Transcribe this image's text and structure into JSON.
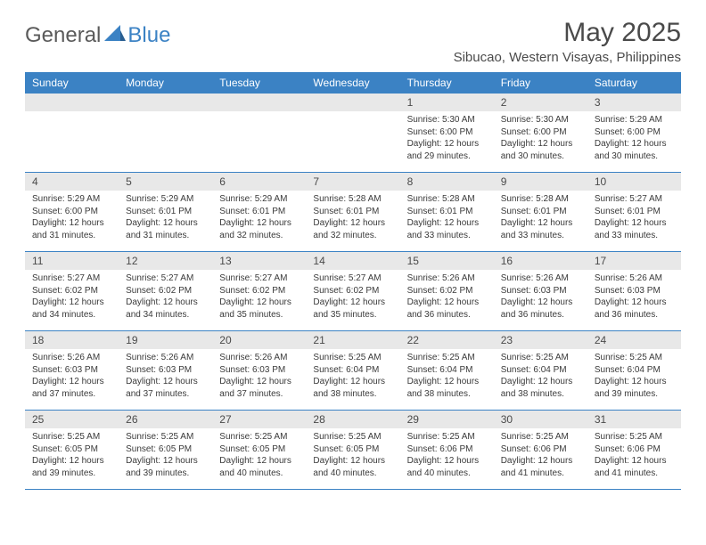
{
  "logo": {
    "general": "General",
    "blue": "Blue"
  },
  "title": "May 2025",
  "location": "Sibucao, Western Visayas, Philippines",
  "colors": {
    "header_bg": "#3b82c4",
    "daynum_bg": "#e8e8e8",
    "text": "#4a4a4a",
    "body_text": "#3a3a3a",
    "border": "#3b82c4",
    "logo_gray": "#5a5a5a",
    "logo_blue": "#3b82c4"
  },
  "weekdays": [
    "Sunday",
    "Monday",
    "Tuesday",
    "Wednesday",
    "Thursday",
    "Friday",
    "Saturday"
  ],
  "weeks": [
    [
      {
        "n": "",
        "sr": "",
        "ss": "",
        "dl": ""
      },
      {
        "n": "",
        "sr": "",
        "ss": "",
        "dl": ""
      },
      {
        "n": "",
        "sr": "",
        "ss": "",
        "dl": ""
      },
      {
        "n": "",
        "sr": "",
        "ss": "",
        "dl": ""
      },
      {
        "n": "1",
        "sr": "Sunrise: 5:30 AM",
        "ss": "Sunset: 6:00 PM",
        "dl": "Daylight: 12 hours and 29 minutes."
      },
      {
        "n": "2",
        "sr": "Sunrise: 5:30 AM",
        "ss": "Sunset: 6:00 PM",
        "dl": "Daylight: 12 hours and 30 minutes."
      },
      {
        "n": "3",
        "sr": "Sunrise: 5:29 AM",
        "ss": "Sunset: 6:00 PM",
        "dl": "Daylight: 12 hours and 30 minutes."
      }
    ],
    [
      {
        "n": "4",
        "sr": "Sunrise: 5:29 AM",
        "ss": "Sunset: 6:00 PM",
        "dl": "Daylight: 12 hours and 31 minutes."
      },
      {
        "n": "5",
        "sr": "Sunrise: 5:29 AM",
        "ss": "Sunset: 6:01 PM",
        "dl": "Daylight: 12 hours and 31 minutes."
      },
      {
        "n": "6",
        "sr": "Sunrise: 5:29 AM",
        "ss": "Sunset: 6:01 PM",
        "dl": "Daylight: 12 hours and 32 minutes."
      },
      {
        "n": "7",
        "sr": "Sunrise: 5:28 AM",
        "ss": "Sunset: 6:01 PM",
        "dl": "Daylight: 12 hours and 32 minutes."
      },
      {
        "n": "8",
        "sr": "Sunrise: 5:28 AM",
        "ss": "Sunset: 6:01 PM",
        "dl": "Daylight: 12 hours and 33 minutes."
      },
      {
        "n": "9",
        "sr": "Sunrise: 5:28 AM",
        "ss": "Sunset: 6:01 PM",
        "dl": "Daylight: 12 hours and 33 minutes."
      },
      {
        "n": "10",
        "sr": "Sunrise: 5:27 AM",
        "ss": "Sunset: 6:01 PM",
        "dl": "Daylight: 12 hours and 33 minutes."
      }
    ],
    [
      {
        "n": "11",
        "sr": "Sunrise: 5:27 AM",
        "ss": "Sunset: 6:02 PM",
        "dl": "Daylight: 12 hours and 34 minutes."
      },
      {
        "n": "12",
        "sr": "Sunrise: 5:27 AM",
        "ss": "Sunset: 6:02 PM",
        "dl": "Daylight: 12 hours and 34 minutes."
      },
      {
        "n": "13",
        "sr": "Sunrise: 5:27 AM",
        "ss": "Sunset: 6:02 PM",
        "dl": "Daylight: 12 hours and 35 minutes."
      },
      {
        "n": "14",
        "sr": "Sunrise: 5:27 AM",
        "ss": "Sunset: 6:02 PM",
        "dl": "Daylight: 12 hours and 35 minutes."
      },
      {
        "n": "15",
        "sr": "Sunrise: 5:26 AM",
        "ss": "Sunset: 6:02 PM",
        "dl": "Daylight: 12 hours and 36 minutes."
      },
      {
        "n": "16",
        "sr": "Sunrise: 5:26 AM",
        "ss": "Sunset: 6:03 PM",
        "dl": "Daylight: 12 hours and 36 minutes."
      },
      {
        "n": "17",
        "sr": "Sunrise: 5:26 AM",
        "ss": "Sunset: 6:03 PM",
        "dl": "Daylight: 12 hours and 36 minutes."
      }
    ],
    [
      {
        "n": "18",
        "sr": "Sunrise: 5:26 AM",
        "ss": "Sunset: 6:03 PM",
        "dl": "Daylight: 12 hours and 37 minutes."
      },
      {
        "n": "19",
        "sr": "Sunrise: 5:26 AM",
        "ss": "Sunset: 6:03 PM",
        "dl": "Daylight: 12 hours and 37 minutes."
      },
      {
        "n": "20",
        "sr": "Sunrise: 5:26 AM",
        "ss": "Sunset: 6:03 PM",
        "dl": "Daylight: 12 hours and 37 minutes."
      },
      {
        "n": "21",
        "sr": "Sunrise: 5:25 AM",
        "ss": "Sunset: 6:04 PM",
        "dl": "Daylight: 12 hours and 38 minutes."
      },
      {
        "n": "22",
        "sr": "Sunrise: 5:25 AM",
        "ss": "Sunset: 6:04 PM",
        "dl": "Daylight: 12 hours and 38 minutes."
      },
      {
        "n": "23",
        "sr": "Sunrise: 5:25 AM",
        "ss": "Sunset: 6:04 PM",
        "dl": "Daylight: 12 hours and 38 minutes."
      },
      {
        "n": "24",
        "sr": "Sunrise: 5:25 AM",
        "ss": "Sunset: 6:04 PM",
        "dl": "Daylight: 12 hours and 39 minutes."
      }
    ],
    [
      {
        "n": "25",
        "sr": "Sunrise: 5:25 AM",
        "ss": "Sunset: 6:05 PM",
        "dl": "Daylight: 12 hours and 39 minutes."
      },
      {
        "n": "26",
        "sr": "Sunrise: 5:25 AM",
        "ss": "Sunset: 6:05 PM",
        "dl": "Daylight: 12 hours and 39 minutes."
      },
      {
        "n": "27",
        "sr": "Sunrise: 5:25 AM",
        "ss": "Sunset: 6:05 PM",
        "dl": "Daylight: 12 hours and 40 minutes."
      },
      {
        "n": "28",
        "sr": "Sunrise: 5:25 AM",
        "ss": "Sunset: 6:05 PM",
        "dl": "Daylight: 12 hours and 40 minutes."
      },
      {
        "n": "29",
        "sr": "Sunrise: 5:25 AM",
        "ss": "Sunset: 6:06 PM",
        "dl": "Daylight: 12 hours and 40 minutes."
      },
      {
        "n": "30",
        "sr": "Sunrise: 5:25 AM",
        "ss": "Sunset: 6:06 PM",
        "dl": "Daylight: 12 hours and 41 minutes."
      },
      {
        "n": "31",
        "sr": "Sunrise: 5:25 AM",
        "ss": "Sunset: 6:06 PM",
        "dl": "Daylight: 12 hours and 41 minutes."
      }
    ]
  ]
}
